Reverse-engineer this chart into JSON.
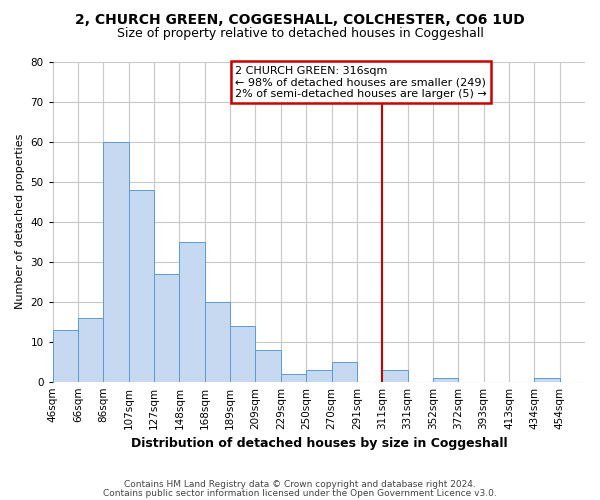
{
  "title1": "2, CHURCH GREEN, COGGESHALL, COLCHESTER, CO6 1UD",
  "title2": "Size of property relative to detached houses in Coggeshall",
  "xlabel": "Distribution of detached houses by size in Coggeshall",
  "ylabel": "Number of detached properties",
  "bin_labels": [
    "46sqm",
    "66sqm",
    "86sqm",
    "107sqm",
    "127sqm",
    "148sqm",
    "168sqm",
    "189sqm",
    "209sqm",
    "229sqm",
    "250sqm",
    "270sqm",
    "291sqm",
    "311sqm",
    "331sqm",
    "352sqm",
    "372sqm",
    "393sqm",
    "413sqm",
    "434sqm",
    "454sqm"
  ],
  "bar_heights": [
    13,
    16,
    60,
    48,
    27,
    35,
    20,
    14,
    8,
    2,
    3,
    5,
    0,
    3,
    0,
    1,
    0,
    0,
    0,
    1,
    0
  ],
  "bar_color": "#c6d9f1",
  "bar_edge_color": "#5b9bd5",
  "vline_x_index": 13,
  "vline_color": "#cc0000",
  "annotation_text": "2 CHURCH GREEN: 316sqm\n← 98% of detached houses are smaller (249)\n2% of semi-detached houses are larger (5) →",
  "annotation_box_color": "#ffffff",
  "annotation_box_edge": "#cc0000",
  "footnote1": "Contains HM Land Registry data © Crown copyright and database right 2024.",
  "footnote2": "Contains public sector information licensed under the Open Government Licence v3.0.",
  "ylim": [
    0,
    80
  ],
  "yticks": [
    0,
    10,
    20,
    30,
    40,
    50,
    60,
    70,
    80
  ],
  "bg_color": "#ffffff",
  "grid_color": "#c8c8c8",
  "title1_fontsize": 10,
  "title2_fontsize": 9,
  "xlabel_fontsize": 9,
  "ylabel_fontsize": 8,
  "tick_fontsize": 7.5,
  "footnote_fontsize": 6.5,
  "annotation_fontsize": 8
}
